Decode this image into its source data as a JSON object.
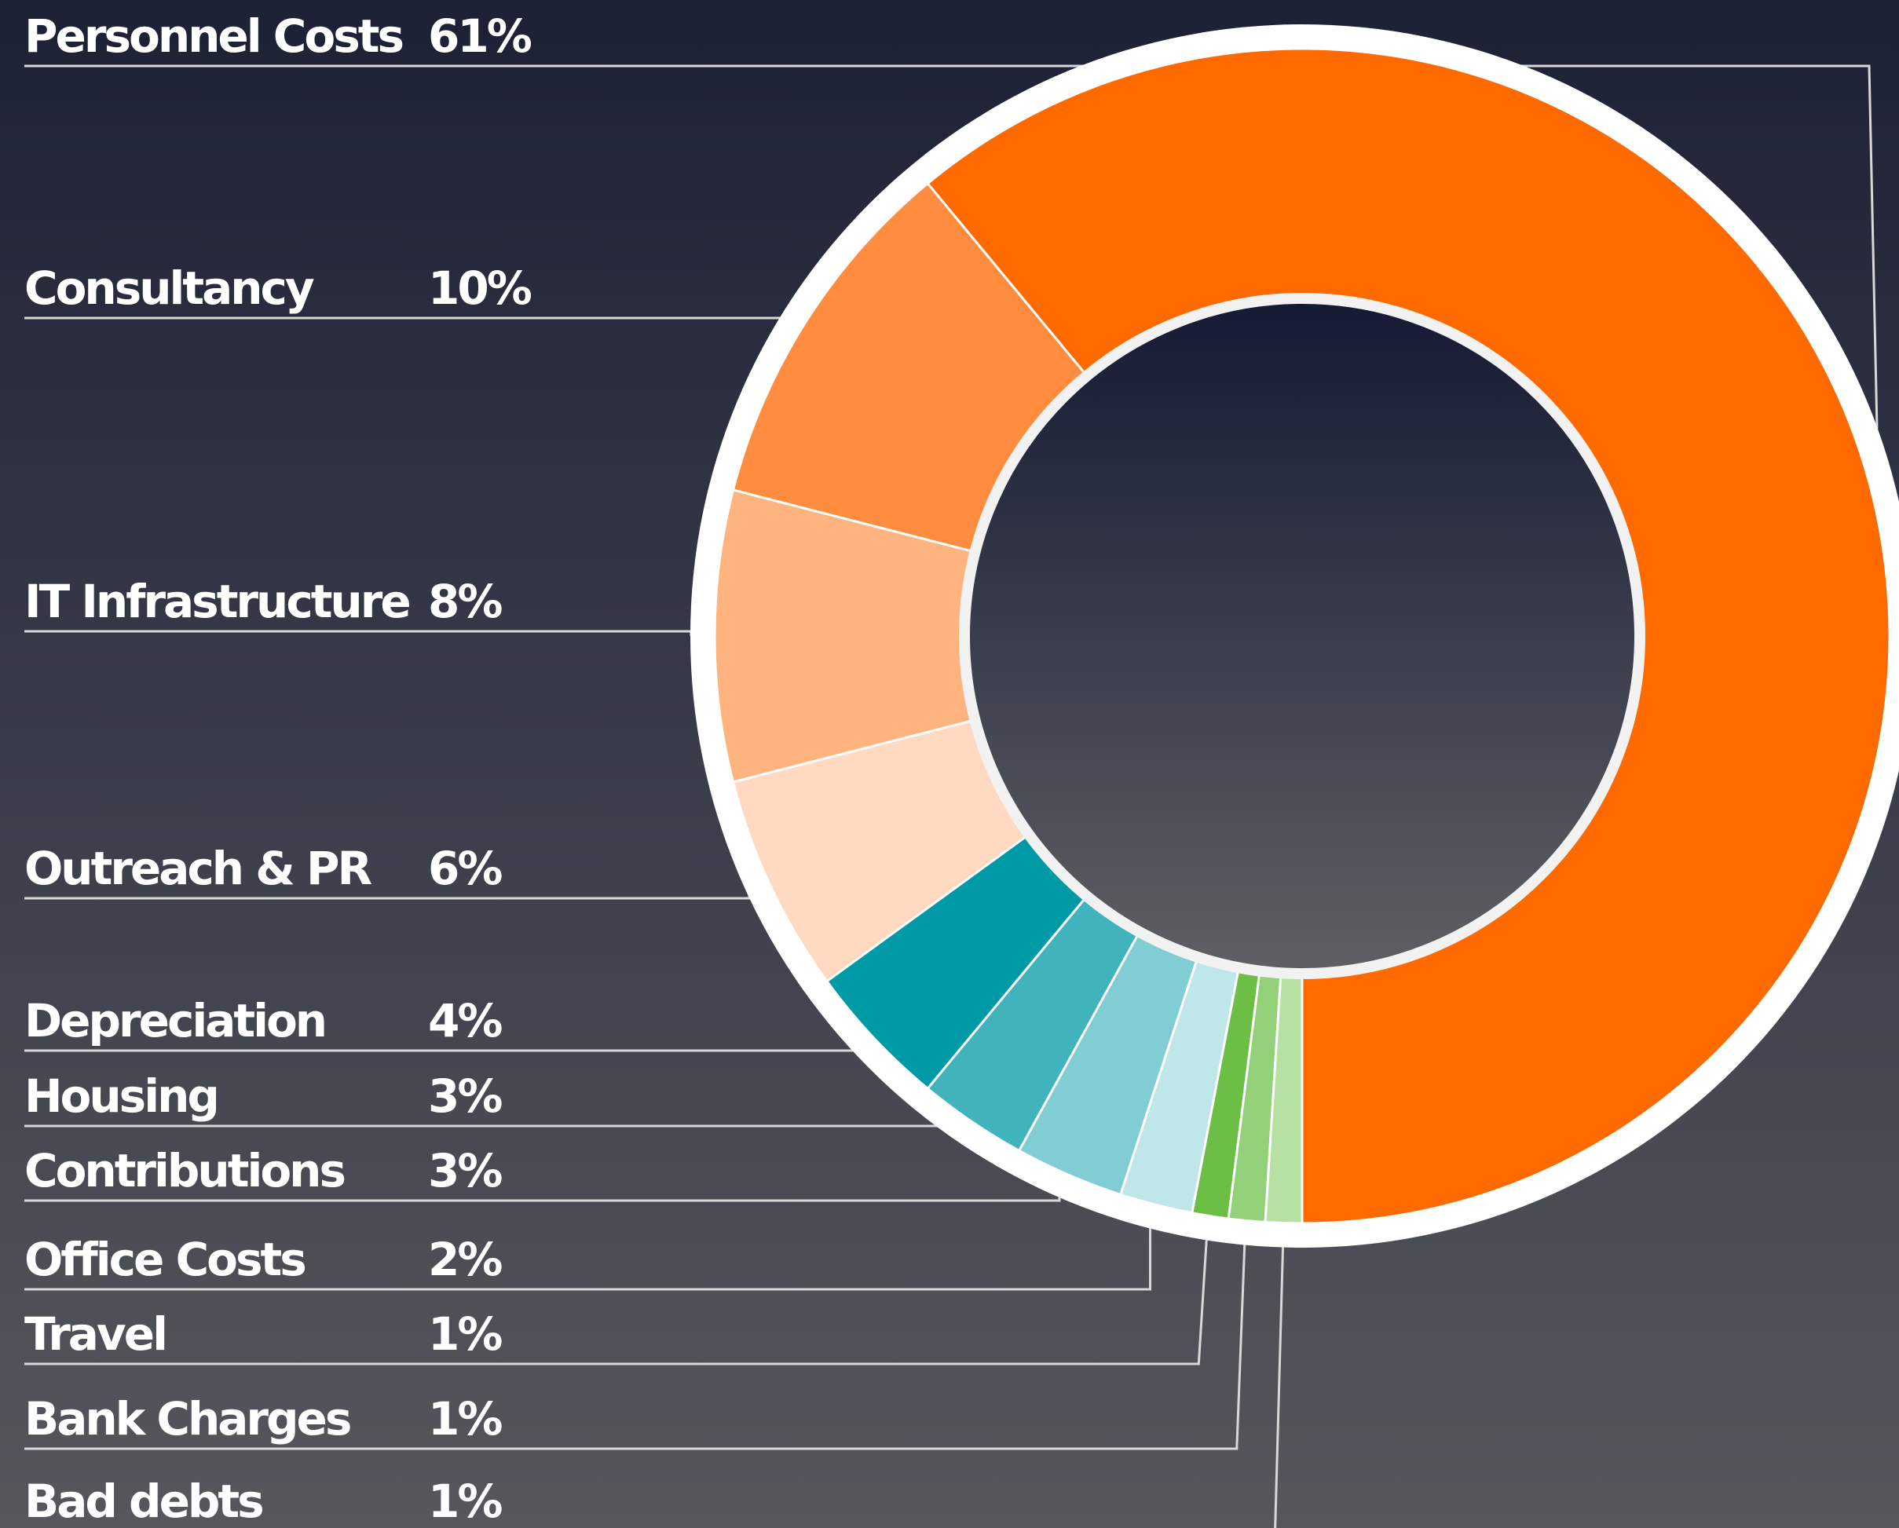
{
  "chart_data": {
    "type": "donut",
    "categories": [
      "Personnel Costs",
      "Consultancy",
      "IT Infrastructure",
      "Outreach & PR",
      "Depreciation",
      "Housing",
      "Contributions",
      "Office Costs",
      "Travel",
      "Bank Charges",
      "Bad debts"
    ],
    "values": [
      61,
      10,
      8,
      6,
      4,
      3,
      3,
      2,
      1,
      1,
      1
    ],
    "value_labels": [
      "61%",
      "10%",
      "8%",
      "6%",
      "4%",
      "3%",
      "3%",
      "2%",
      "1%",
      "1%",
      "1%"
    ],
    "colors": [
      "#ff6a00",
      "#ff8c3f",
      "#ffb47f",
      "#ffd9c0",
      "#009aa6",
      "#40b3bd",
      "#80cdd3",
      "#bfe6e9",
      "#6dbe45",
      "#92d07a",
      "#b6e1a2"
    ]
  }
}
